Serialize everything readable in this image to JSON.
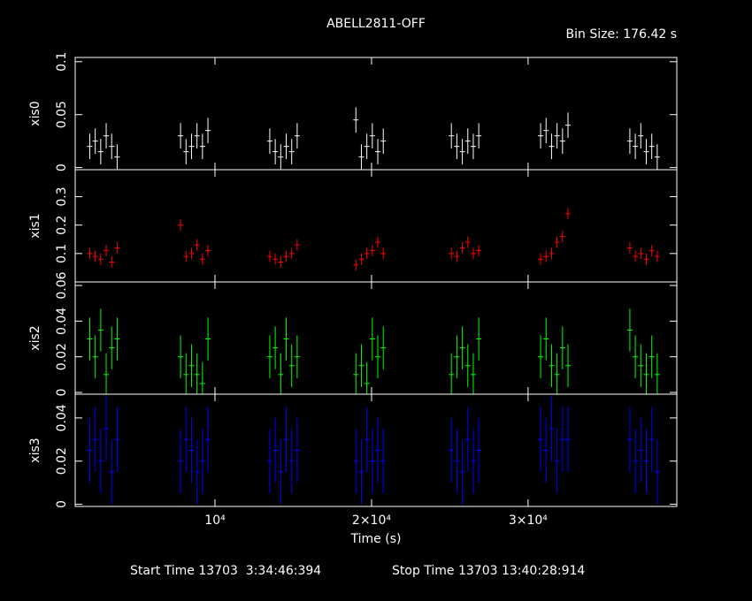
{
  "chart_data": {
    "type": "errorbar",
    "title": "ABELL2811-OFF",
    "subtitle": "Bin Size: 176.42 s",
    "xlabel": "Time (s)",
    "footer": [
      "Start Time 13703  3:34:46:394",
      "Stop Time 13703 13:40:28:914"
    ],
    "xlim": [
      1070,
      39500
    ],
    "xticks": [
      {
        "value": 10000,
        "label": "10⁴"
      },
      {
        "value": 20000,
        "label": "2×10⁴"
      },
      {
        "value": 30000,
        "label": "3×10⁴"
      }
    ],
    "x": [
      2000,
      2350,
      2700,
      3050,
      3400,
      3750,
      7800,
      8150,
      8500,
      8850,
      9200,
      9550,
      13500,
      13850,
      14200,
      14550,
      14900,
      15250,
      19000,
      19350,
      19700,
      20050,
      20400,
      20750,
      25100,
      25450,
      25800,
      26150,
      26500,
      26850,
      30800,
      31150,
      31500,
      31850,
      32200,
      32550,
      36500,
      36850,
      37200,
      37550,
      37900,
      38250
    ],
    "series": [
      {
        "name": "xis0",
        "color": "#ffffff",
        "ylim": [
          -0.002,
          0.104
        ],
        "yticks": [
          0,
          0.05,
          0.1
        ],
        "error": 0.012,
        "values": [
          0.02,
          0.025,
          0.015,
          0.03,
          0.02,
          0.01,
          0.03,
          0.015,
          0.02,
          0.03,
          0.02,
          0.035,
          0.025,
          0.015,
          0.01,
          0.02,
          0.015,
          0.03,
          0.045,
          0.01,
          0.02,
          0.03,
          0.015,
          0.025,
          0.03,
          0.02,
          0.015,
          0.025,
          0.02,
          0.03,
          0.03,
          0.035,
          0.02,
          0.03,
          0.025,
          0.04,
          0.025,
          0.02,
          0.03,
          0.015,
          0.02,
          0.01
        ]
      },
      {
        "name": "xis1",
        "color": "#ff0000",
        "ylim": [
          0,
          0.395
        ],
        "yticks": [
          0.1,
          0.2,
          0.3
        ],
        "error": 0.02,
        "values": [
          0.1,
          0.09,
          0.08,
          0.11,
          0.07,
          0.12,
          0.2,
          0.09,
          0.1,
          0.13,
          0.08,
          0.11,
          0.09,
          0.08,
          0.07,
          0.09,
          0.1,
          0.13,
          0.06,
          0.08,
          0.1,
          0.11,
          0.14,
          0.1,
          0.1,
          0.09,
          0.12,
          0.14,
          0.1,
          0.11,
          0.08,
          0.09,
          0.1,
          0.14,
          0.16,
          0.24,
          0.12,
          0.09,
          0.1,
          0.08,
          0.11,
          0.09
        ]
      },
      {
        "name": "xis2",
        "color": "#00ff00",
        "ylim": [
          -0.001,
          0.062
        ],
        "yticks": [
          0,
          0.02,
          0.04,
          0.06
        ],
        "error": 0.012,
        "values": [
          0.03,
          0.02,
          0.035,
          0.01,
          0.025,
          0.03,
          0.02,
          0.01,
          0.015,
          0.01,
          0.005,
          0.03,
          0.02,
          0.025,
          0.01,
          0.03,
          0.015,
          0.02,
          0.01,
          0.015,
          0.005,
          0.03,
          0.02,
          0.025,
          0.01,
          0.02,
          0.025,
          0.015,
          0.01,
          0.03,
          0.02,
          0.03,
          0.015,
          0.01,
          0.025,
          0.015,
          0.035,
          0.02,
          0.015,
          0.01,
          0.02,
          0.01
        ]
      },
      {
        "name": "xis3",
        "color": "#0000ff",
        "ylim": [
          -0.001,
          0.051
        ],
        "yticks": [
          0,
          0.02,
          0.04
        ],
        "error": 0.015,
        "values": [
          0.025,
          0.03,
          0.02,
          0.035,
          0.015,
          0.03,
          0.02,
          0.03,
          0.025,
          0.015,
          0.02,
          0.03,
          0.02,
          0.025,
          0.015,
          0.03,
          0.02,
          0.025,
          0.02,
          0.015,
          0.03,
          0.02,
          0.025,
          0.02,
          0.025,
          0.02,
          0.015,
          0.03,
          0.02,
          0.025,
          0.03,
          0.025,
          0.035,
          0.02,
          0.03,
          0.03,
          0.03,
          0.02,
          0.025,
          0.02,
          0.03,
          0.015
        ]
      }
    ]
  }
}
